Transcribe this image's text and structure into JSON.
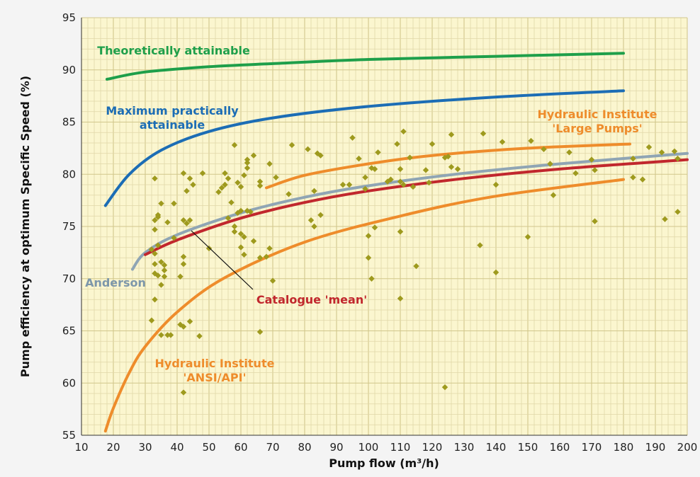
{
  "chart_data": {
    "type": "scatter",
    "title": "",
    "xlabel": "Pump flow (m³/h)",
    "ylabel": "Pump efficiency at optimum Specific Speed (%)",
    "xlim": [
      10,
      200
    ],
    "ylim": [
      55,
      95
    ],
    "xticks": [
      10,
      20,
      30,
      40,
      50,
      60,
      70,
      80,
      90,
      100,
      110,
      120,
      130,
      140,
      150,
      160,
      170,
      180,
      190,
      200
    ],
    "yticks": [
      55,
      60,
      65,
      70,
      75,
      80,
      85,
      90,
      95
    ],
    "grid": true,
    "colors": {
      "background": "#FBF6CF",
      "grid": "#E0D7A8",
      "points": "#9E9A1E"
    },
    "curves": [
      {
        "label_lines": [
          "Theoretically attainable"
        ],
        "color": "#1E9F4A",
        "points": [
          [
            18,
            89.1
          ],
          [
            30,
            89.8
          ],
          [
            50,
            90.3
          ],
          [
            70,
            90.6
          ],
          [
            100,
            91
          ],
          [
            140,
            91.3
          ],
          [
            180,
            91.6
          ]
        ]
      },
      {
        "label_lines": [
          "Maximum practically",
          "attainable"
        ],
        "color": "#1C6DB5",
        "points": [
          [
            17.5,
            77
          ],
          [
            25,
            80
          ],
          [
            35,
            82.3
          ],
          [
            50,
            84.1
          ],
          [
            70,
            85.4
          ],
          [
            100,
            86.5
          ],
          [
            140,
            87.4
          ],
          [
            180,
            88
          ]
        ]
      },
      {
        "label_lines": [
          "Hydraulic Institute",
          "'Large Pumps'"
        ],
        "color": "#EE8C2B",
        "points": [
          [
            68,
            78.7
          ],
          [
            80,
            79.9
          ],
          [
            100,
            81
          ],
          [
            120,
            81.8
          ],
          [
            150,
            82.5
          ],
          [
            182,
            82.9
          ]
        ]
      },
      {
        "label_lines": [
          "Anderson"
        ],
        "color": "#8FA5B4",
        "points": [
          [
            26,
            70.9
          ],
          [
            30,
            72.5
          ],
          [
            40,
            74.2
          ],
          [
            60,
            76.3
          ],
          [
            80,
            77.8
          ],
          [
            100,
            78.9
          ],
          [
            130,
            80.1
          ],
          [
            160,
            81
          ],
          [
            200,
            82
          ]
        ]
      },
      {
        "label_lines": [
          "Catalogue 'mean'"
        ],
        "color": "#C1272D",
        "points": [
          [
            30,
            72.3
          ],
          [
            40,
            73.7
          ],
          [
            60,
            75.8
          ],
          [
            80,
            77.3
          ],
          [
            100,
            78.4
          ],
          [
            130,
            79.6
          ],
          [
            160,
            80.5
          ],
          [
            200,
            81.4
          ]
        ]
      },
      {
        "label_lines": [
          "Hydraulic Institute",
          "'ANSI/API'"
        ],
        "color": "#EE8C2B",
        "points": [
          [
            17.5,
            55.4
          ],
          [
            20,
            57.6
          ],
          [
            25,
            61
          ],
          [
            30,
            63.5
          ],
          [
            40,
            66.8
          ],
          [
            55,
            70.1
          ],
          [
            80,
            73.5
          ],
          [
            110,
            76
          ],
          [
            140,
            77.9
          ],
          [
            180,
            79.5
          ]
        ]
      }
    ],
    "scatter_points": [
      [
        32,
        66
      ],
      [
        33,
        68
      ],
      [
        32,
        72.8
      ],
      [
        33,
        72.4
      ],
      [
        33,
        70.5
      ],
      [
        33,
        71.4
      ],
      [
        34,
        70.3
      ],
      [
        34,
        73.2
      ],
      [
        33,
        74.7
      ],
      [
        33,
        75.6
      ],
      [
        34,
        75.9
      ],
      [
        34,
        76.1
      ],
      [
        33,
        79.6
      ],
      [
        35,
        69.4
      ],
      [
        35,
        71.6
      ],
      [
        36,
        71.3
      ],
      [
        36,
        70.8
      ],
      [
        36,
        70.2
      ],
      [
        35,
        64.6
      ],
      [
        37,
        64.6
      ],
      [
        35,
        77.2
      ],
      [
        37,
        75.4
      ],
      [
        38,
        64.6
      ],
      [
        39,
        73.9
      ],
      [
        39,
        77.2
      ],
      [
        41,
        65.6
      ],
      [
        42,
        59.1
      ],
      [
        42,
        65.4
      ],
      [
        42,
        71.4
      ],
      [
        41,
        70.2
      ],
      [
        42,
        72.1
      ],
      [
        42,
        75.6
      ],
      [
        43,
        75.3
      ],
      [
        44,
        75.6
      ],
      [
        42,
        80.1
      ],
      [
        43,
        78.4
      ],
      [
        44,
        79.6
      ],
      [
        45,
        79
      ],
      [
        44,
        65.9
      ],
      [
        47,
        64.5
      ],
      [
        48,
        80.1
      ],
      [
        50,
        72.9
      ],
      [
        53,
        78.3
      ],
      [
        54,
        78.7
      ],
      [
        55,
        79
      ],
      [
        55,
        80.1
      ],
      [
        56,
        79.6
      ],
      [
        56,
        75.8
      ],
      [
        57,
        77.3
      ],
      [
        58,
        74.5
      ],
      [
        58,
        82.8
      ],
      [
        58,
        75
      ],
      [
        59,
        76.3
      ],
      [
        59,
        79.2
      ],
      [
        60,
        76.5
      ],
      [
        60,
        78.8
      ],
      [
        60,
        74.3
      ],
      [
        60,
        73
      ],
      [
        61,
        79.9
      ],
      [
        61,
        72.3
      ],
      [
        61,
        74
      ],
      [
        62,
        81.1
      ],
      [
        62,
        81.4
      ],
      [
        62,
        80.6
      ],
      [
        62,
        76.5
      ],
      [
        63,
        76.4
      ],
      [
        64,
        73.6
      ],
      [
        64,
        81.8
      ],
      [
        66,
        79.3
      ],
      [
        66,
        78.9
      ],
      [
        66,
        72
      ],
      [
        66,
        64.9
      ],
      [
        68,
        72.1
      ],
      [
        69,
        72.9
      ],
      [
        69,
        81
      ],
      [
        70,
        69.8
      ],
      [
        71,
        79.7
      ],
      [
        75,
        78.1
      ],
      [
        76,
        82.8
      ],
      [
        81,
        82.4
      ],
      [
        82,
        75.6
      ],
      [
        83,
        75
      ],
      [
        83,
        78.4
      ],
      [
        84,
        82
      ],
      [
        85,
        81.8
      ],
      [
        85,
        76.1
      ],
      [
        92,
        79
      ],
      [
        94,
        79
      ],
      [
        95,
        83.5
      ],
      [
        97,
        81.5
      ],
      [
        99,
        79.7
      ],
      [
        99,
        78.6
      ],
      [
        100,
        74.1
      ],
      [
        100,
        72
      ],
      [
        101,
        80.6
      ],
      [
        101,
        70
      ],
      [
        102,
        80.5
      ],
      [
        102,
        74.9
      ],
      [
        103,
        82.1
      ],
      [
        106,
        79.3
      ],
      [
        107,
        79.5
      ],
      [
        109,
        82.9
      ],
      [
        110,
        79.3
      ],
      [
        110,
        80.5
      ],
      [
        110,
        74.5
      ],
      [
        110,
        68.1
      ],
      [
        111,
        79
      ],
      [
        111,
        84.1
      ],
      [
        113,
        81.6
      ],
      [
        114,
        78.8
      ],
      [
        115,
        71.2
      ],
      [
        118,
        80.4
      ],
      [
        119,
        79.2
      ],
      [
        120,
        82.9
      ],
      [
        124,
        81.6
      ],
      [
        124,
        59.6
      ],
      [
        125,
        81.7
      ],
      [
        126,
        80.7
      ],
      [
        126,
        83.8
      ],
      [
        128,
        80.5
      ],
      [
        135,
        73.2
      ],
      [
        136,
        83.9
      ],
      [
        140,
        79
      ],
      [
        140,
        70.6
      ],
      [
        142,
        83.1
      ],
      [
        150,
        74
      ],
      [
        151,
        83.2
      ],
      [
        155,
        82.4
      ],
      [
        157,
        81
      ],
      [
        158,
        78
      ],
      [
        163,
        82.1
      ],
      [
        165,
        80.1
      ],
      [
        170,
        81.4
      ],
      [
        171,
        80.4
      ],
      [
        171,
        75.5
      ],
      [
        183,
        79.7
      ],
      [
        183,
        81.5
      ],
      [
        186,
        79.5
      ],
      [
        188,
        82.6
      ],
      [
        192,
        82.1
      ],
      [
        193,
        75.7
      ],
      [
        196,
        82.2
      ],
      [
        197,
        81.5
      ],
      [
        197,
        76.4
      ]
    ]
  }
}
